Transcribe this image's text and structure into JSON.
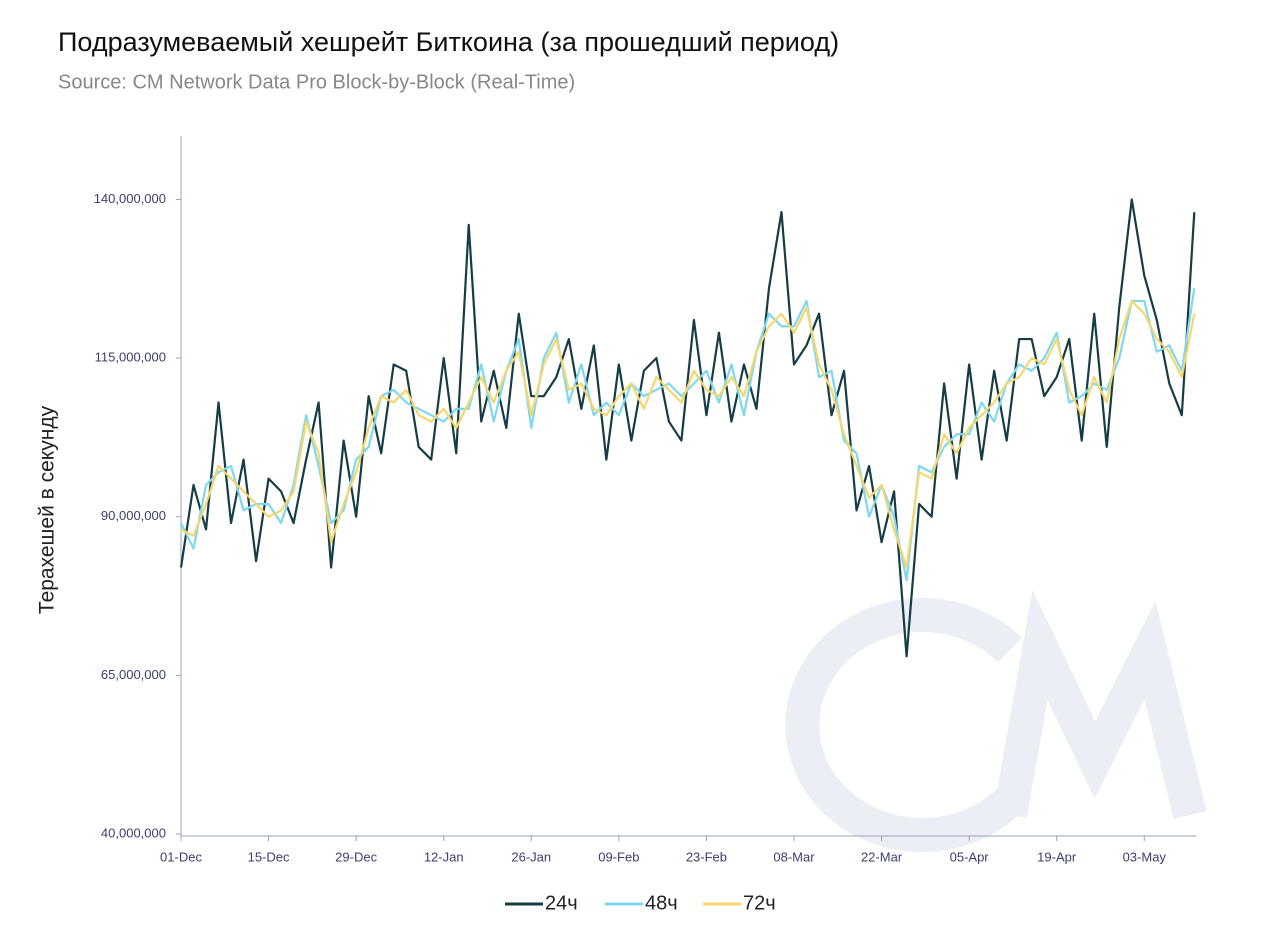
{
  "chart_data": {
    "type": "line",
    "title": "Подразумеваемый хешрейт Биткоина (за прошедший период)",
    "subtitle": "Source: CM Network Data Pro Block-by-Block (Real-Time)",
    "y_label": "Терахешей в секунду",
    "categories": [
      "01-Dec",
      null,
      null,
      null,
      null,
      null,
      null,
      "15-Dec",
      null,
      null,
      null,
      null,
      null,
      null,
      "29-Dec",
      null,
      null,
      null,
      null,
      null,
      null,
      "12-Jan",
      null,
      null,
      null,
      null,
      null,
      null,
      "26-Jan",
      null,
      null,
      null,
      null,
      null,
      null,
      "09-Feb",
      null,
      null,
      null,
      null,
      null,
      null,
      "23-Feb",
      null,
      null,
      null,
      null,
      null,
      null,
      "08-Mar",
      null,
      null,
      null,
      null,
      null,
      null,
      "22-Mar",
      null,
      null,
      null,
      null,
      null,
      null,
      "05-Apr",
      null,
      null,
      null,
      null,
      null,
      null,
      "19-Apr",
      null,
      null,
      null,
      null,
      null,
      null,
      "03-May",
      null,
      null,
      null,
      null
    ],
    "series": [
      {
        "name": "24ч",
        "color": "#163c45",
        "values": [
          82000000,
          95000000,
          88000000,
          108000000,
          89000000,
          99000000,
          83000000,
          96000000,
          94000000,
          89000000,
          99000000,
          108000000,
          82000000,
          102000000,
          90000000,
          109000000,
          100000000,
          114000000,
          113000000,
          101000000,
          99000000,
          115000000,
          100000000,
          136000000,
          105000000,
          113000000,
          104000000,
          122000000,
          109000000,
          109000000,
          112000000,
          118000000,
          107000000,
          117000000,
          99000000,
          114000000,
          102000000,
          113000000,
          115000000,
          105000000,
          102000000,
          121000000,
          106000000,
          119000000,
          105000000,
          114000000,
          107000000,
          126000000,
          138000000,
          114000000,
          117000000,
          122000000,
          106000000,
          113000000,
          91000000,
          98000000,
          86000000,
          94000000,
          68000000,
          92000000,
          90000000,
          111000000,
          96000000,
          114000000,
          99000000,
          113000000,
          102000000,
          118000000,
          118000000,
          109000000,
          112000000,
          118000000,
          102000000,
          122000000,
          101000000,
          123000000,
          140000000,
          128000000,
          121000000,
          111000000,
          106000000,
          138000000
        ]
      },
      {
        "name": "48ч",
        "color": "#7fd8f0",
        "values": [
          89000000,
          85000000,
          95000000,
          97000000,
          98000000,
          91000000,
          92000000,
          92000000,
          89000000,
          95000000,
          106000000,
          98000000,
          89000000,
          91000000,
          99000000,
          101000000,
          109000000,
          110000000,
          108000000,
          107000000,
          106000000,
          105000000,
          107000000,
          107000000,
          114000000,
          105000000,
          113000000,
          118000000,
          104000000,
          115000000,
          119000000,
          108000000,
          114000000,
          106000000,
          108000000,
          106000000,
          111000000,
          109000000,
          110000000,
          111000000,
          109000000,
          111000000,
          113000000,
          108000000,
          114000000,
          106000000,
          116000000,
          122000000,
          120000000,
          120000000,
          124000000,
          112000000,
          113000000,
          102000000,
          100000000,
          90000000,
          95000000,
          90000000,
          80000000,
          98000000,
          97000000,
          101000000,
          103000000,
          103000000,
          108000000,
          105000000,
          111000000,
          114000000,
          113000000,
          115000000,
          119000000,
          108000000,
          109000000,
          111000000,
          110000000,
          115000000,
          124000000,
          124000000,
          116000000,
          117000000,
          113000000,
          126000000
        ]
      },
      {
        "name": "72ч",
        "color": "#f5d76e",
        "values": [
          88000000,
          87000000,
          92000000,
          98000000,
          96000000,
          94000000,
          92000000,
          90000000,
          91000000,
          94000000,
          105000000,
          100000000,
          86000000,
          92000000,
          97000000,
          104000000,
          109000000,
          108000000,
          110000000,
          106000000,
          105000000,
          107000000,
          104000000,
          108000000,
          112000000,
          108000000,
          113000000,
          116000000,
          106000000,
          114000000,
          118000000,
          110000000,
          111000000,
          107000000,
          106000000,
          109000000,
          111000000,
          107000000,
          112000000,
          110000000,
          108000000,
          113000000,
          110000000,
          109000000,
          112000000,
          109000000,
          116000000,
          120000000,
          122000000,
          119000000,
          123000000,
          114000000,
          110000000,
          103000000,
          98000000,
          93000000,
          95000000,
          88000000,
          82000000,
          97000000,
          96000000,
          103000000,
          100000000,
          104000000,
          106000000,
          108000000,
          111000000,
          112000000,
          115000000,
          114000000,
          118000000,
          110000000,
          106000000,
          112000000,
          108000000,
          118000000,
          124000000,
          122000000,
          118000000,
          116000000,
          112000000,
          122000000
        ]
      }
    ],
    "ylim": [
      40000000,
      150000000
    ],
    "yticks": [
      {
        "value": 40000000,
        "label": "40,000,000"
      },
      {
        "value": 65000000,
        "label": "65,000,000"
      },
      {
        "value": 90000000,
        "label": "90,000,000"
      },
      {
        "value": 115000000,
        "label": "115,000,000"
      },
      {
        "value": 140000000,
        "label": "140,000,000"
      }
    ],
    "legend": "bottom"
  }
}
